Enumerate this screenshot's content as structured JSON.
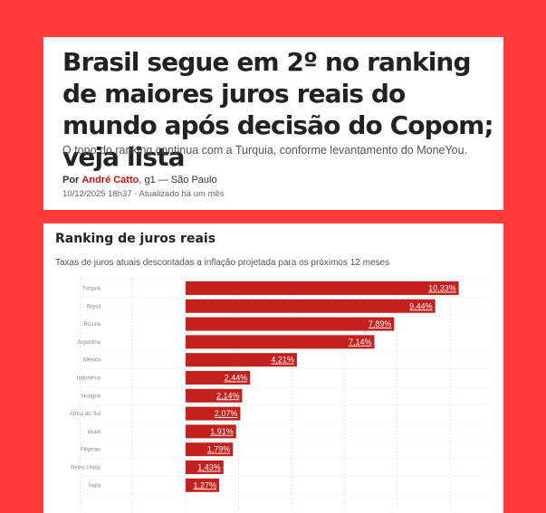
{
  "article": {
    "headline": "Brasil segue em 2º no ranking de maiores juros reais do mundo após decisão do Copom; veja lista",
    "subtitle": "O topo do ranking continua com a Turquia, conforme levantamento do MoneYou.",
    "byline": {
      "prefix": "Por",
      "author": "André Catto",
      "outlet_location": ", g1 — São Paulo"
    },
    "dateline": "10/12/2025 18h37 · Atualizado há um mês"
  },
  "chart": {
    "title": "Ranking de juros reais",
    "subtitle": "Taxas de juros atuais descontadas a inflação projetada para os próximos 12 meses",
    "bar_color": "#c4201d"
  },
  "chart_data": {
    "type": "bar",
    "orientation": "horizontal",
    "title": "Ranking de juros reais",
    "subtitle": "Taxas de juros atuais descontadas a inflação projetada para os próximos 12 meses",
    "categories": [
      "Turquia",
      "Brasil",
      "Rússia",
      "Argentina",
      "México",
      "Indonésia",
      "Hungria",
      "África do Sul",
      "Israel",
      "Filipinas",
      "Reino Unido",
      "Índia"
    ],
    "values": [
      10.33,
      9.44,
      7.89,
      7.14,
      4.21,
      2.44,
      2.14,
      2.07,
      1.91,
      1.79,
      1.43,
      1.27
    ],
    "value_labels": [
      "10,33%",
      "9,44%",
      "7,89%",
      "7,14%",
      "4,21%",
      "2,44%",
      "2,14%",
      "2,07%",
      "1,91%",
      "1,79%",
      "1,43%",
      "1,27%"
    ],
    "grid": true,
    "xlim": [
      -4,
      11.5
    ]
  }
}
